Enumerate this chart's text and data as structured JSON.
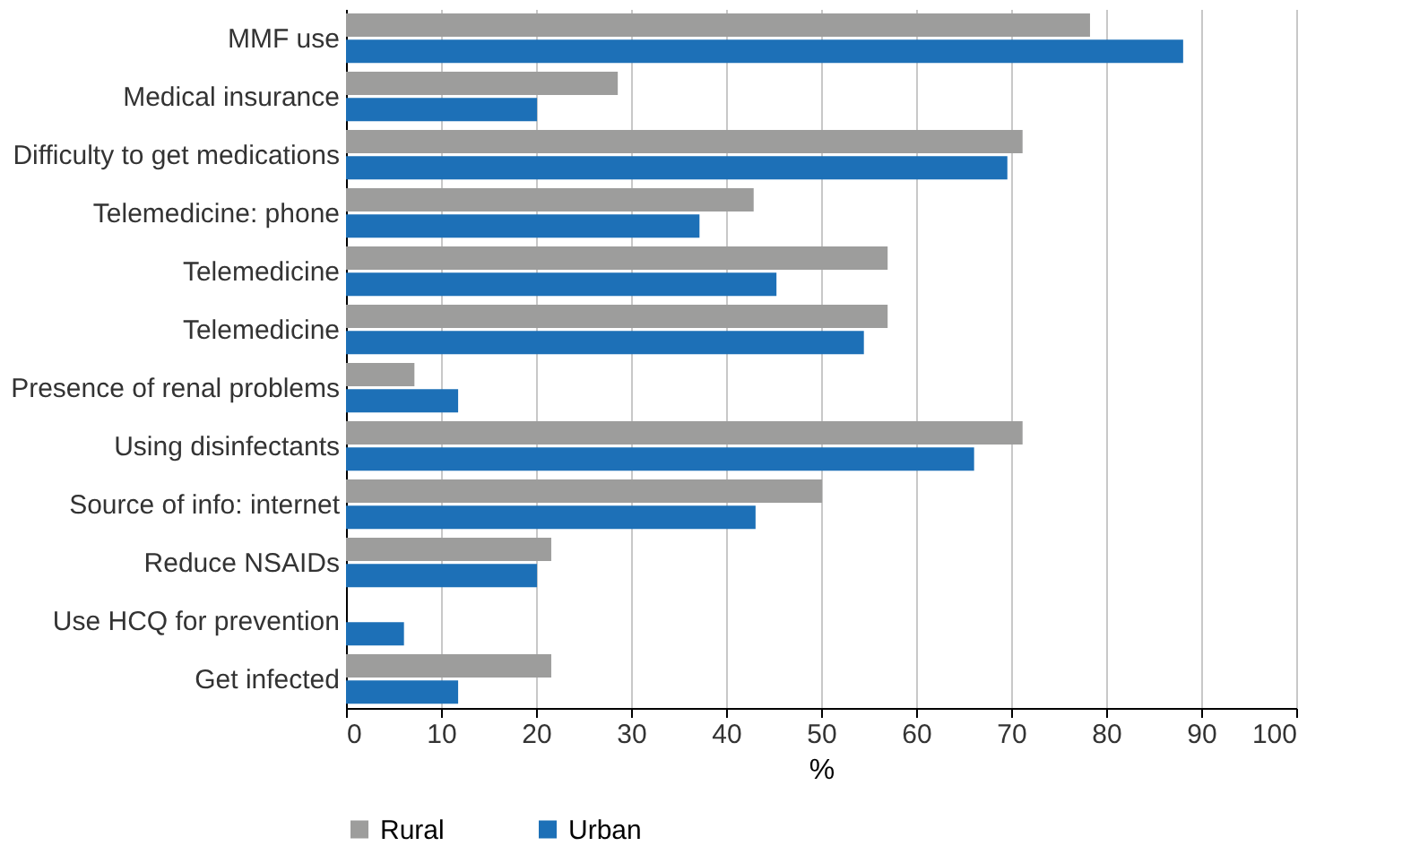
{
  "chart_data": {
    "type": "bar",
    "orientation": "horizontal",
    "categories": [
      "MMF use",
      "Medical insurance",
      "Difficulty to get medications",
      "Telemedicine: phone",
      "Telemedicine",
      "Telemedicine",
      "Presence of renal problems",
      "Using disinfectants",
      "Source of info: internet",
      "Reduce NSAIDs",
      "Use HCQ for prevention",
      "Get infected"
    ],
    "series": [
      {
        "name": "Rural",
        "color": "#9d9d9c",
        "values": [
          78.3,
          28.6,
          71.2,
          42.9,
          57.0,
          57.0,
          7.2,
          71.2,
          50.1,
          21.6,
          0,
          21.6
        ]
      },
      {
        "name": "Urban",
        "color": "#1d70b7",
        "values": [
          88.1,
          20.1,
          69.6,
          37.2,
          45.3,
          54.5,
          11.8,
          66.1,
          43.1,
          20.1,
          6.1,
          11.8
        ]
      }
    ],
    "xlabel": "%",
    "xlim": [
      0,
      100
    ],
    "xticks": [
      0,
      10,
      20,
      30,
      40,
      50,
      60,
      70,
      80,
      90,
      100
    ],
    "grid": "x",
    "legend": "bottom"
  }
}
